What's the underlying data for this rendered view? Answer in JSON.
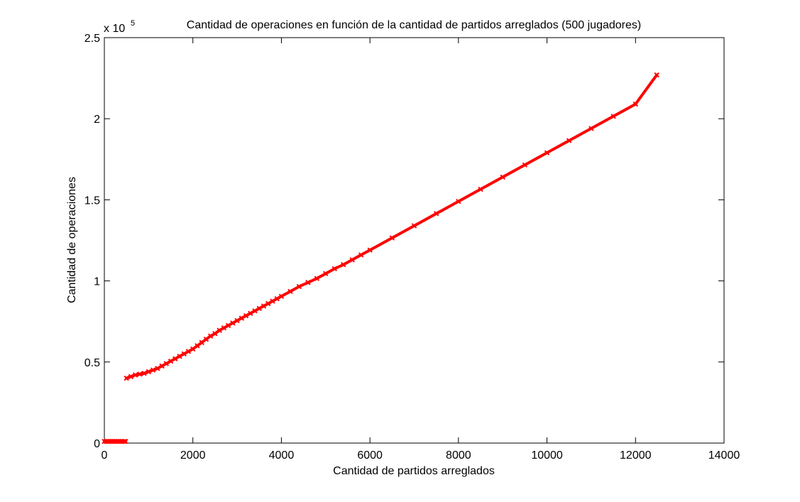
{
  "chart_data": {
    "type": "scatter",
    "title": "Cantidad de operaciones en función de la cantidad de partidos arreglados (500 jugadores)",
    "xlabel": "Cantidad de partidos arreglados",
    "ylabel": "Cantidad de operaciones",
    "xlim": [
      0,
      14000
    ],
    "ylim": [
      0,
      250000
    ],
    "y_exponent_label": "x 10",
    "y_exponent_power": "5",
    "x_ticks": [
      0,
      2000,
      4000,
      6000,
      8000,
      10000,
      12000,
      14000
    ],
    "x_tick_labels": [
      "0",
      "2000",
      "4000",
      "6000",
      "8000",
      "10000",
      "12000",
      "14000"
    ],
    "y_ticks": [
      0,
      50000,
      100000,
      150000,
      200000,
      250000
    ],
    "y_tick_labels": [
      "0",
      "0.5",
      "1",
      "1.5",
      "2",
      "2.5"
    ],
    "grid": false,
    "marker_color": "#ff0000",
    "series": [
      {
        "points": [
          [
            0,
            1000
          ],
          [
            50,
            1000
          ],
          [
            100,
            1000
          ],
          [
            150,
            1000
          ],
          [
            200,
            1000
          ],
          [
            250,
            1000
          ],
          [
            300,
            1000
          ],
          [
            350,
            1000
          ],
          [
            400,
            1000
          ],
          [
            450,
            1000
          ],
          [
            480,
            1000
          ],
          [
            500,
            40000
          ],
          [
            600,
            41000
          ],
          [
            700,
            42000
          ],
          [
            800,
            42500
          ],
          [
            900,
            43000
          ],
          [
            1000,
            44000
          ],
          [
            1100,
            45000
          ],
          [
            1200,
            46000
          ],
          [
            1300,
            47500
          ],
          [
            1400,
            49000
          ],
          [
            1500,
            50500
          ],
          [
            1600,
            52000
          ],
          [
            1700,
            53500
          ],
          [
            1800,
            55000
          ],
          [
            1900,
            56500
          ],
          [
            2000,
            58000
          ],
          [
            2100,
            60000
          ],
          [
            2200,
            62000
          ],
          [
            2300,
            64000
          ],
          [
            2400,
            66000
          ],
          [
            2500,
            67500
          ],
          [
            2600,
            69500
          ],
          [
            2700,
            71000
          ],
          [
            2800,
            72500
          ],
          [
            2900,
            74000
          ],
          [
            3000,
            75500
          ],
          [
            3100,
            77000
          ],
          [
            3200,
            78500
          ],
          [
            3300,
            80000
          ],
          [
            3400,
            81500
          ],
          [
            3500,
            83000
          ],
          [
            3600,
            84500
          ],
          [
            3700,
            86000
          ],
          [
            3800,
            87500
          ],
          [
            3900,
            89000
          ],
          [
            4000,
            90500
          ],
          [
            4200,
            93500
          ],
          [
            4400,
            96500
          ],
          [
            4600,
            99000
          ],
          [
            4800,
            101500
          ],
          [
            5000,
            104500
          ],
          [
            5200,
            107500
          ],
          [
            5400,
            110000
          ],
          [
            5600,
            113000
          ],
          [
            5800,
            116000
          ],
          [
            6000,
            119000
          ],
          [
            6500,
            126500
          ],
          [
            7000,
            134000
          ],
          [
            7500,
            141500
          ],
          [
            8000,
            149000
          ],
          [
            8500,
            156500
          ],
          [
            9000,
            164000
          ],
          [
            9500,
            171500
          ],
          [
            10000,
            179000
          ],
          [
            10500,
            186500
          ],
          [
            11000,
            194000
          ],
          [
            11500,
            201500
          ],
          [
            12000,
            209000
          ],
          [
            12480,
            227000
          ]
        ]
      }
    ]
  }
}
